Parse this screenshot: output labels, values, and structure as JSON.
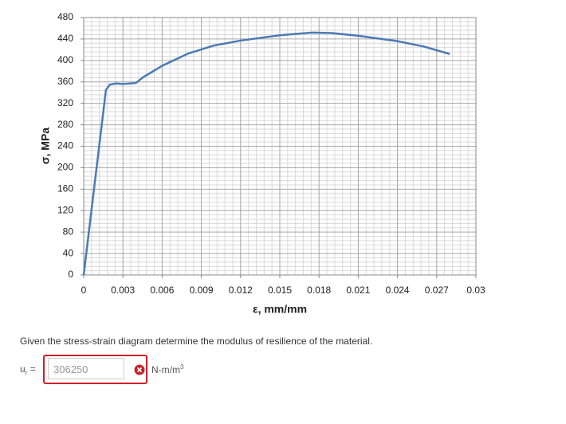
{
  "chart_data": {
    "type": "line",
    "x_label": "ε, mm/mm",
    "y_label": "σ, MPa",
    "x": [
      0,
      0.0017,
      0.002,
      0.0025,
      0.003,
      0.004,
      0.0045,
      0.006,
      0.008,
      0.01,
      0.012,
      0.015,
      0.0175,
      0.019,
      0.021,
      0.024,
      0.026,
      0.028
    ],
    "series": [
      {
        "color": "#4a7ab5",
        "values": [
          0,
          345,
          355,
          357,
          356,
          358,
          368,
          390,
          413,
          428,
          437,
          447,
          452,
          451,
          446,
          436,
          426,
          412
        ]
      }
    ],
    "xlim": [
      0,
      0.03
    ],
    "xticks": [
      0,
      0.003,
      0.006,
      0.009,
      0.012,
      0.015,
      0.018,
      0.021,
      0.024,
      0.027,
      0.03
    ],
    "ylim": [
      0,
      480
    ],
    "yticks": [
      0,
      40,
      80,
      120,
      160,
      200,
      240,
      280,
      320,
      360,
      400,
      440,
      480
    ],
    "grid": true
  },
  "question": "Given the stress-strain diagram determine the modulus of resilience of the material.",
  "answer": {
    "label": "u",
    "label_sub": "r",
    "equals": "=",
    "value": 306250,
    "unit": "N-m/m",
    "unit_sup": "3"
  }
}
